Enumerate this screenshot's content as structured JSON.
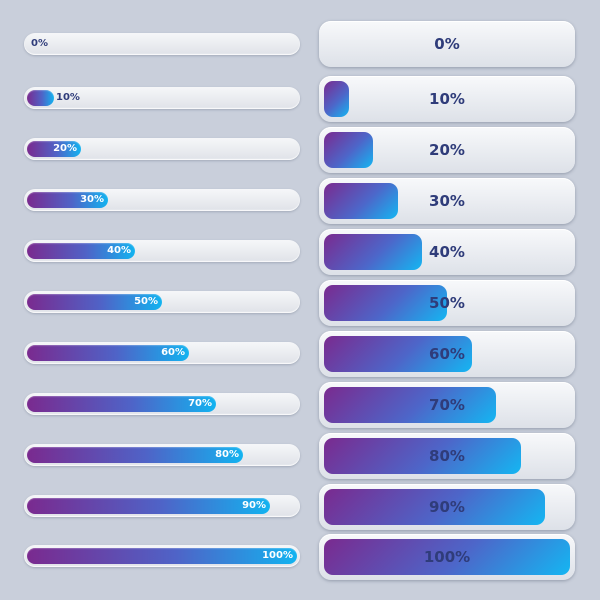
{
  "thin_bars": [
    {
      "label": "0%",
      "progress": 0.0
    },
    {
      "label": "10%",
      "progress": 0.1
    },
    {
      "label": "20%",
      "progress": 0.2
    },
    {
      "label": "30%",
      "progress": 0.3
    },
    {
      "label": "40%",
      "progress": 0.4
    },
    {
      "label": "50%",
      "progress": 0.5
    },
    {
      "label": "60%",
      "progress": 0.6
    },
    {
      "label": "70%",
      "progress": 0.7
    },
    {
      "label": "80%",
      "progress": 0.8
    },
    {
      "label": "90%",
      "progress": 0.9
    },
    {
      "label": "100%",
      "progress": 1.0
    }
  ],
  "thick_bars": [
    {
      "label": "0%",
      "progress": 0.0
    },
    {
      "label": "10%",
      "progress": 0.1
    },
    {
      "label": "20%",
      "progress": 0.2
    },
    {
      "label": "30%",
      "progress": 0.3
    },
    {
      "label": "40%",
      "progress": 0.4
    },
    {
      "label": "50%",
      "progress": 0.5
    },
    {
      "label": "60%",
      "progress": 0.6
    },
    {
      "label": "70%",
      "progress": 0.7
    },
    {
      "label": "80%",
      "progress": 0.8
    },
    {
      "label": "90%",
      "progress": 0.9
    },
    {
      "label": "100%",
      "progress": 1.0
    }
  ],
  "colors": {
    "background": "#c9cfdb",
    "gradient_start": "#7a2a8f",
    "gradient_end": "#12b3f0",
    "label_text": "#2f3c7a"
  }
}
